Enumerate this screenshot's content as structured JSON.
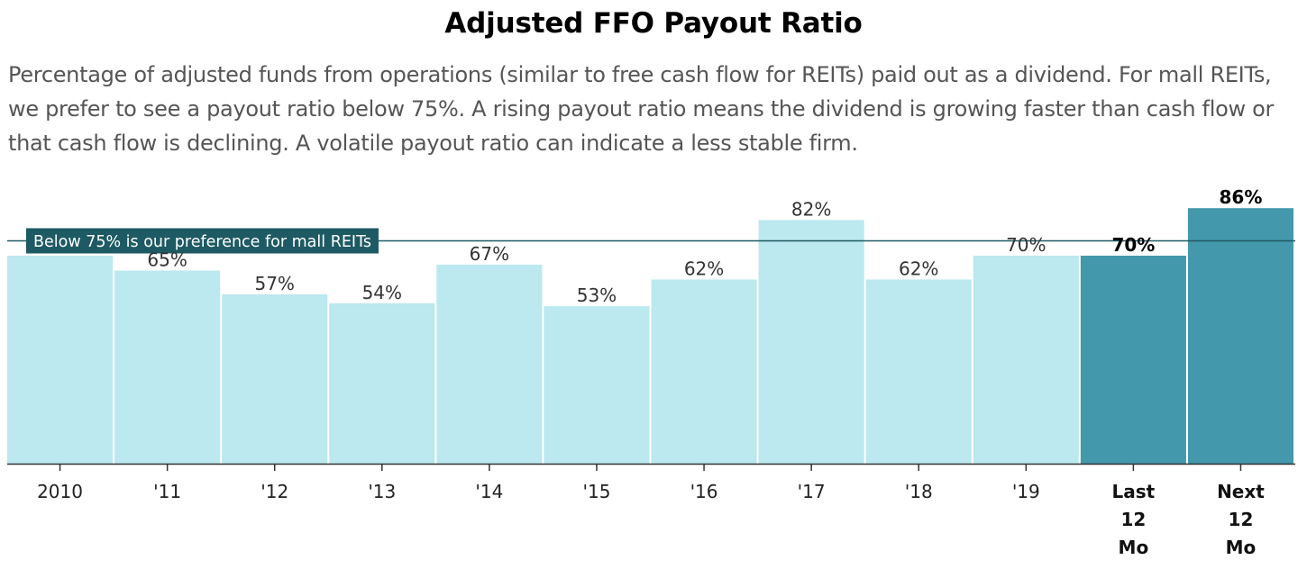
{
  "title": "Adjusted FFO Payout Ratio",
  "subtitle": "Percentage of adjusted funds from operations (similar to free cash flow for REITs) paid out as a dividend. For mall REITs, we prefer to see a payout ratio below 75%. A rising payout ratio means the dividend is growing faster than cash flow or that cash flow is declining. A volatile payout ratio can indicate a less stable firm.",
  "chart_data": {
    "type": "bar",
    "categories": [
      "2010",
      "'11",
      "'12",
      "'13",
      "'14",
      "'15",
      "'16",
      "'17",
      "'18",
      "'19",
      "Last 12 Mo",
      "Next 12 Mo"
    ],
    "values": [
      70,
      65,
      57,
      54,
      67,
      53,
      62,
      82,
      62,
      70,
      70,
      86
    ],
    "data_labels": [
      "",
      "65%",
      "57%",
      "54%",
      "67%",
      "53%",
      "62%",
      "82%",
      "62%",
      "70%",
      "70%",
      "86%"
    ],
    "highlighted": [
      false,
      false,
      false,
      false,
      false,
      false,
      false,
      false,
      false,
      false,
      true,
      true
    ],
    "reference_line": {
      "value": 75,
      "label": "Below 75% is our preference for mall REITs"
    },
    "ylim": [
      0,
      88
    ],
    "xlabel": "",
    "ylabel": "",
    "grid": false,
    "colors": {
      "bar": "#bce8ef",
      "highlight": "#4398ab",
      "reference": "#1e5a63",
      "axis": "#333333"
    }
  }
}
